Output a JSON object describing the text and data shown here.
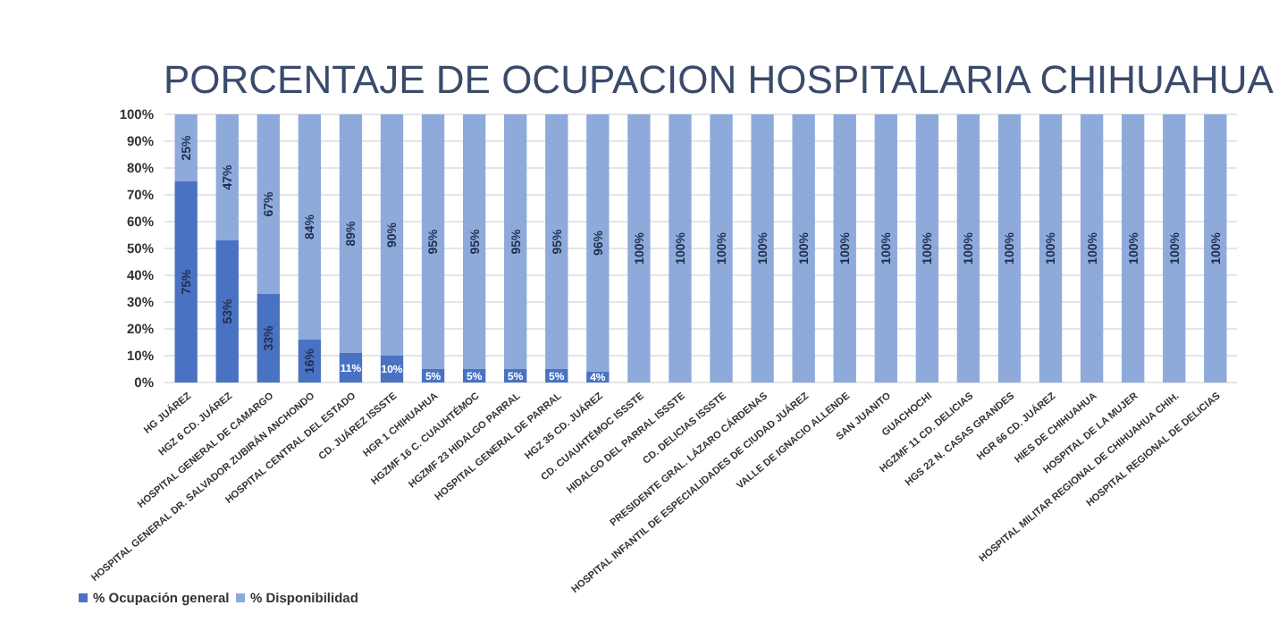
{
  "chart_data": {
    "type": "bar",
    "title": "PORCENTAJE DE OCUPACION HOSPITALARIA CHIHUAHUA",
    "stacked": true,
    "legend": "bottom left",
    "grid": "y",
    "categories": [
      "HG JUÁREZ",
      "HGZ 6 CD. JUÁREZ",
      "HOSPITAL GENERAL DE CAMARGO",
      "HOSPITAL GENERAL DR. SALVADOR ZUBIRÁN ANCHONDO",
      "HOSPITAL CENTRAL DEL ESTADO",
      "CD. JUÁREZ ISSSTE",
      "HGR 1 CHIHUAHUA",
      "HGZMF 16 C. CUAUHTÉMOC",
      "HGZMF 23 HIDALGO PARRAL",
      "HOSPITAL GENERAL DE PARRAL",
      "HGZ 35 CD. JUÁREZ",
      "CD. CUAUHTÉMOC ISSSTE",
      "HIDALGO DEL PARRAL ISSSTE",
      "CD. DELICIAS ISSSTE",
      "PRESIDENTE GRAL. LÁZARO CÁRDENAS",
      "HOSPITAL INFANTIL DE ESPECIALIDADES DE CIUDAD JUÁREZ",
      "VALLE DE IGNACIO ALLENDE",
      "SAN JUANITO",
      "GUACHOCHI",
      "HGZMF 11 CD. DELICIAS",
      "HGS 22 N. CASAS GRANDES",
      "HGR 66 CD. JUÁREZ",
      "HIES DE CHIHUAHUA",
      "HOSPITAL DE LA MUJER",
      "HOSPITAL MILITAR REGIONAL DE CHIHUAHUA CHIH.",
      "HOSPITAL REGIONAL DE DELICIAS"
    ],
    "series": [
      {
        "name": "% Ocupación general",
        "color": "#4a72c2",
        "values": [
          75,
          53,
          33,
          16,
          11,
          10,
          5,
          5,
          5,
          5,
          4,
          0,
          0,
          0,
          0,
          0,
          0,
          0,
          0,
          0,
          0,
          0,
          0,
          0,
          0,
          0
        ],
        "value_labels": [
          "75%",
          "53%",
          "33%",
          "16%",
          "11%",
          "10%",
          "5%",
          "5%",
          "5%",
          "5%",
          "4%",
          null,
          null,
          null,
          null,
          null,
          null,
          null,
          null,
          null,
          null,
          null,
          null,
          null,
          null,
          null
        ]
      },
      {
        "name": "% Disponibilidad",
        "color": "#8eaadb",
        "values": [
          25,
          47,
          67,
          84,
          89,
          90,
          95,
          95,
          95,
          95,
          96,
          100,
          100,
          100,
          100,
          100,
          100,
          100,
          100,
          100,
          100,
          100,
          100,
          100,
          100,
          100
        ],
        "value_labels": [
          "25%",
          "47%",
          "67%",
          "84%",
          "89%",
          "90%",
          "95%",
          "95%",
          "95%",
          "95%",
          "96%",
          "100%",
          "100%",
          "100%",
          "100%",
          "100%",
          "100%",
          "100%",
          "100%",
          "100%",
          "100%",
          "100%",
          "100%",
          "100%",
          "100%",
          "100%"
        ]
      }
    ],
    "ylim": [
      0,
      100
    ],
    "yticks": [
      {
        "value": 0,
        "label": "0%"
      },
      {
        "value": 10,
        "label": "10%"
      },
      {
        "value": 20,
        "label": "20%"
      },
      {
        "value": 30,
        "label": "30%"
      },
      {
        "value": 40,
        "label": "40%"
      },
      {
        "value": 50,
        "label": "50%"
      },
      {
        "value": 60,
        "label": "60%"
      },
      {
        "value": 70,
        "label": "70%"
      },
      {
        "value": 80,
        "label": "80%"
      },
      {
        "value": 90,
        "label": "90%"
      },
      {
        "value": 100,
        "label": "100%"
      }
    ]
  }
}
